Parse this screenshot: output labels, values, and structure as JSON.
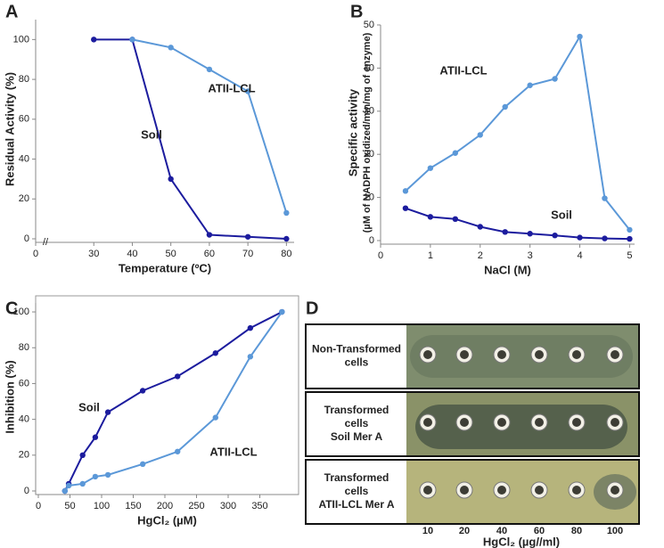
{
  "chart_data": [
    {
      "type": "line",
      "label": "A",
      "xlabel": "Temperature (ºC)",
      "ylabel": "Residual Activity (%)",
      "xlim": [
        20,
        82
      ],
      "xticks": [
        0,
        30,
        40,
        50,
        60,
        70,
        80
      ],
      "axis_break": true,
      "ylim": [
        0,
        110
      ],
      "yticks": [
        0,
        20,
        40,
        60,
        80,
        100
      ],
      "series": [
        {
          "name": "Soil",
          "color": "#1c1c9e",
          "x": [
            30,
            40,
            50,
            60,
            70,
            80
          ],
          "values": [
            100,
            100,
            30,
            2,
            1,
            0
          ]
        },
        {
          "name": "ATII-LCL",
          "color": "#5b98d8",
          "x": [
            40,
            50,
            60,
            70,
            80
          ],
          "values": [
            100,
            96,
            85,
            74,
            13
          ]
        }
      ]
    },
    {
      "type": "line",
      "label": "B",
      "xlabel": "NaCl (M)",
      "ylabel": "Specific activity",
      "ylabel_sub": "(µM of NADPH oxidized/min/mg of enzyme)",
      "xlim": [
        0,
        5.1
      ],
      "xticks": [
        0,
        1,
        2,
        3,
        4,
        5
      ],
      "ylim": [
        0,
        50
      ],
      "yticks": [
        0,
        10,
        20,
        30,
        40,
        50
      ],
      "series": [
        {
          "name": "ATII-LCL",
          "color": "#5b98d8",
          "x": [
            0.5,
            1,
            1.5,
            2,
            2.5,
            3,
            3.5,
            4,
            4.5,
            5
          ],
          "values": [
            11.5,
            16.8,
            20.3,
            24.5,
            31,
            36,
            37.5,
            47.3,
            9.8,
            2.5
          ]
        },
        {
          "name": "Soil",
          "color": "#1c1c9e",
          "x": [
            0.5,
            1,
            1.5,
            2,
            2.5,
            3,
            3.5,
            4,
            4.5,
            5
          ],
          "values": [
            7.5,
            5.5,
            5,
            3.2,
            2,
            1.6,
            1.2,
            0.7,
            0.5,
            0.4
          ]
        }
      ]
    },
    {
      "type": "line",
      "label": "C",
      "xlabel": "HgCl₂ (µM)",
      "ylabel": "Inhibition  (%)",
      "frame": true,
      "xlim": [
        0,
        400
      ],
      "xticks": [
        0,
        50,
        100,
        150,
        200,
        250,
        300,
        350
      ],
      "ylim": [
        0,
        105
      ],
      "yticks": [
        0,
        20,
        40,
        60,
        80,
        100
      ],
      "series": [
        {
          "name": "Soil",
          "color": "#1c1c9e",
          "x": [
            42,
            48,
            70,
            90,
            110,
            165,
            220,
            280,
            335,
            385
          ],
          "values": [
            0,
            4,
            20,
            30,
            44,
            56,
            64,
            77,
            91,
            100
          ]
        },
        {
          "name": "ATII-LCL",
          "color": "#5b98d8",
          "x": [
            42,
            48,
            70,
            90,
            110,
            165,
            220,
            280,
            335,
            385
          ],
          "values": [
            0,
            3,
            4,
            8,
            9,
            15,
            22,
            41,
            75,
            100
          ]
        }
      ]
    }
  ],
  "panel_d": {
    "label": "D",
    "rows": [
      [
        "Non-Transformed",
        "cells"
      ],
      [
        "Transformed",
        "cells",
        "Soil Mer A"
      ],
      [
        "Transformed",
        "cells",
        "ATII-LCL Mer A"
      ]
    ],
    "concentrations": [
      10,
      20,
      40,
      60,
      80,
      100
    ],
    "xlabel": "HgCl₂ (µg//ml)"
  }
}
